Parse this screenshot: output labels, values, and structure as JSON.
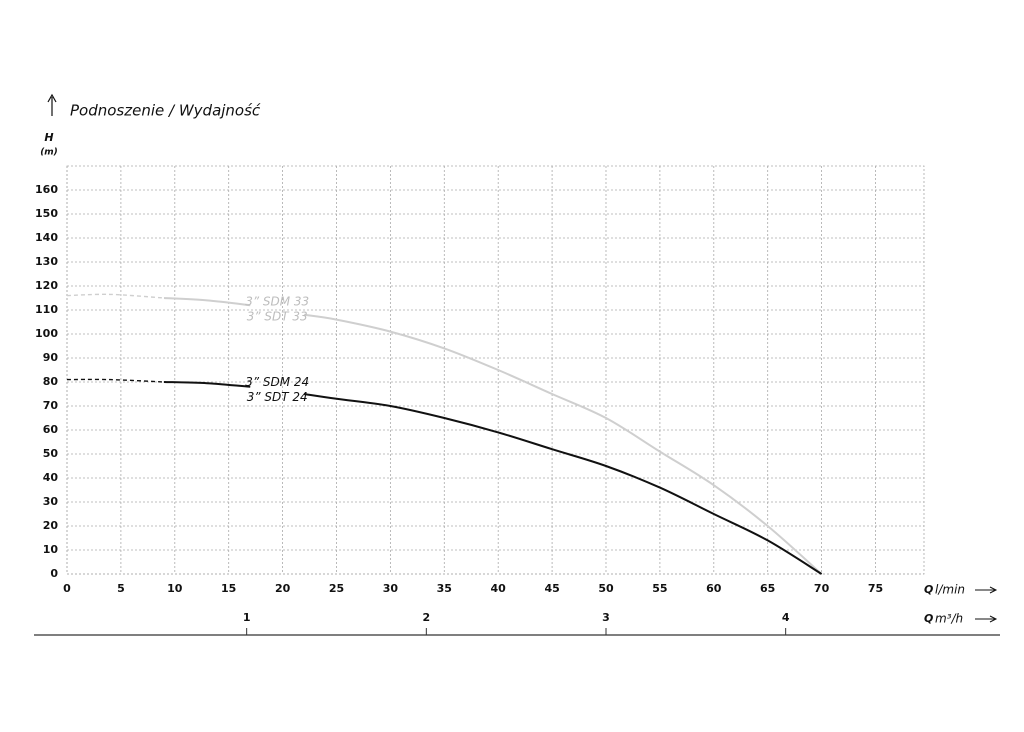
{
  "chart_data": {
    "type": "line",
    "title": "Podnoszenie / Wydajność",
    "y_label": "H",
    "y_unit": "(m)",
    "x_label_q": "Q",
    "x_label_unit": "l/min",
    "x2_label_unit": "m³/h",
    "x": [
      0,
      4,
      9,
      13,
      17,
      20,
      22,
      25,
      30,
      35,
      40,
      45,
      50,
      55,
      60,
      65,
      70
    ],
    "series": [
      {
        "labels": [
          "3” SDM 33",
          "3” SDT 33"
        ],
        "color": "#cfcfcf",
        "label_color": "#bdbdbd",
        "values": [
          116,
          116.5,
          115,
          114,
          112,
          null,
          108,
          106,
          101,
          94,
          85,
          75,
          65,
          51,
          37,
          20,
          0
        ]
      },
      {
        "labels": [
          "3” SDM 24",
          "3” SDT 24"
        ],
        "color": "#111111",
        "label_color": "#111111",
        "values": [
          81,
          81,
          80,
          79.5,
          78,
          null,
          75,
          73,
          70,
          65,
          59,
          52,
          45,
          36,
          25,
          14,
          0
        ]
      }
    ],
    "dash_until_x": 9,
    "xlim": [
      0,
      79.5
    ],
    "xticks": [
      0,
      5,
      10,
      15,
      20,
      25,
      30,
      35,
      40,
      45,
      50,
      55,
      60,
      65,
      70,
      75
    ],
    "ylim": [
      0,
      170
    ],
    "yticks": [
      0,
      10,
      20,
      30,
      40,
      50,
      60,
      70,
      80,
      90,
      100,
      110,
      120,
      130,
      140,
      150,
      160
    ],
    "x2lim": [
      0,
      4.77
    ],
    "x2ticks": [
      1,
      2,
      3,
      4
    ],
    "grid": true
  }
}
